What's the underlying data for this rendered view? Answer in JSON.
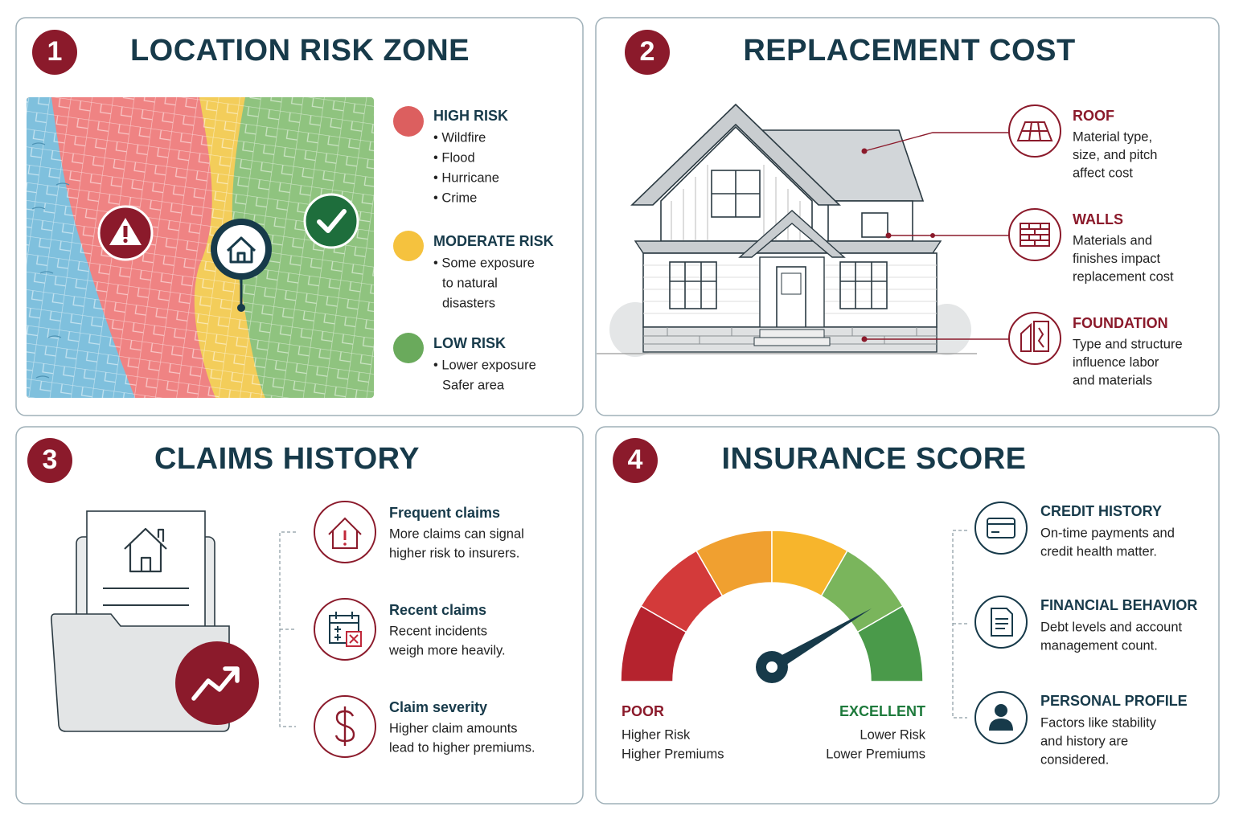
{
  "panels": [
    {
      "number": "1",
      "title": "LOCATION RISK ZONE",
      "items": [
        {
          "title": "HIGH RISK",
          "lines": [
            "• Wildfire",
            "• Flood",
            "• Hurricane",
            "• Crime"
          ]
        },
        {
          "title": "MODERATE RISK",
          "lines": [
            "• Some exposure",
            "to natural",
            "disasters"
          ]
        },
        {
          "title": "LOW RISK",
          "lines": [
            "• Lower exposure",
            "Safer area"
          ]
        }
      ]
    },
    {
      "number": "2",
      "title": "REPLACEMENT COST",
      "items": [
        {
          "title": "ROOF",
          "lines": [
            "Material type,",
            "size, and pitch",
            "affect cost"
          ]
        },
        {
          "title": "WALLS",
          "lines": [
            "Materials and",
            "finishes impact",
            "replacement cost"
          ]
        },
        {
          "title": "FOUNDATION",
          "lines": [
            "Type and structure",
            "influence labor",
            "and materials"
          ]
        }
      ]
    },
    {
      "number": "3",
      "title": "CLAIMS HISTORY",
      "items": [
        {
          "title": "Frequent claims",
          "lines": [
            "More claims can signal",
            "higher risk to insurers."
          ]
        },
        {
          "title": "Recent claims",
          "lines": [
            "Recent incidents",
            "weigh more heavily."
          ]
        },
        {
          "title": "Claim severity",
          "lines": [
            "Higher claim amounts",
            "lead to higher premiums."
          ]
        }
      ]
    },
    {
      "number": "4",
      "title": "INSURANCE SCORE",
      "gauge": {
        "low": {
          "label": "POOR",
          "lines": [
            "Higher Risk",
            "Higher Premiums"
          ]
        },
        "high": {
          "label": "EXCELLENT",
          "lines": [
            "Lower Risk",
            "Lower Premiums"
          ]
        }
      },
      "items": [
        {
          "title": "CREDIT HISTORY",
          "lines": [
            "On-time payments and",
            "credit health matter."
          ]
        },
        {
          "title": "FINANCIAL BEHAVIOR",
          "lines": [
            "Debt levels and account",
            "management count."
          ]
        },
        {
          "title": "PERSONAL PROFILE",
          "lines": [
            "Factors like stability",
            "and history are",
            "considered."
          ]
        }
      ]
    }
  ]
}
